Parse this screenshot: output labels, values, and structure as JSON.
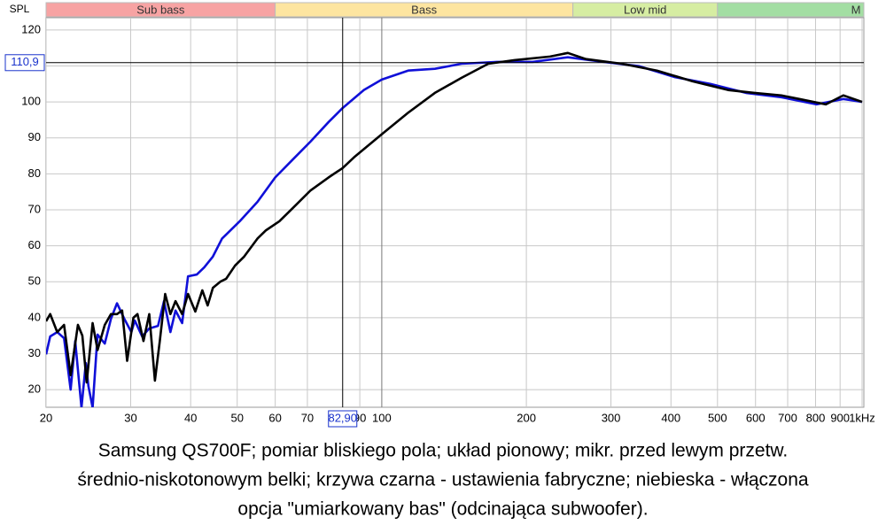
{
  "chart_data": {
    "type": "line",
    "ylabel": "SPL",
    "xscale": "log",
    "xlim": [
      20,
      1000
    ],
    "ylim": [
      15.1,
      123.4
    ],
    "xticks": [
      20,
      30,
      40,
      50,
      60,
      70,
      90,
      100,
      200,
      300,
      400,
      500,
      600,
      700,
      800,
      900,
      {
        "value": 1000,
        "label": "1kHz"
      }
    ],
    "yticks": [
      20,
      30,
      40,
      50,
      60,
      70,
      80,
      90,
      100,
      110,
      120
    ],
    "grid": true,
    "bands": [
      {
        "name": "Sub bass",
        "from": 20,
        "to": 60,
        "color": "#f7a3a3"
      },
      {
        "name": "Bass",
        "from": 60,
        "to": 250,
        "color": "#fde5a0"
      },
      {
        "name": "Low mid",
        "from": 250,
        "to": 500,
        "color": "#d6eda2"
      },
      {
        "name": "M",
        "from": 500,
        "color": "#a3dea3"
      }
    ],
    "cursor": {
      "x": {
        "value": 82.9,
        "label": "82,90"
      },
      "y": {
        "value": 110.9,
        "label": "110,9"
      },
      "color": "#1a33cc"
    },
    "series": [
      {
        "color": "#1010d8",
        "x": [
          20,
          20.4,
          21.1,
          21.8,
          22.5,
          23.0,
          23.7,
          24.2,
          24.5,
          25.0,
          25.6,
          26.5,
          27.3,
          28.1,
          29.1,
          30.1,
          30.6,
          31.7,
          32.8,
          34.2,
          35.2,
          36.3,
          37.2,
          38.4,
          39.5,
          41.2,
          42.7,
          44.5,
          46.5,
          50.6,
          55.1,
          60,
          65.3,
          71.1,
          77.5,
          82.9,
          91.8,
          100,
          113.5,
          129,
          146.6,
          173.8,
          206,
          244,
          290,
          344,
          407,
          483,
          573,
          679,
          804,
          914,
          1000
        ],
        "values": [
          29.8,
          34.8,
          36,
          34.3,
          20,
          33.5,
          15,
          27.4,
          21,
          15,
          35.3,
          32.8,
          39.7,
          44,
          39.7,
          36,
          39.2,
          34.8,
          37,
          37.7,
          44.6,
          36,
          42,
          38.5,
          51.5,
          52,
          54,
          57,
          62,
          66.8,
          72.2,
          79,
          84,
          89,
          94.4,
          98.3,
          103.3,
          106.2,
          108.7,
          109.2,
          110.6,
          111.1,
          111.1,
          112.4,
          111.1,
          109.9,
          106.9,
          105,
          102.5,
          101.3,
          99.3,
          100.8,
          100
        ]
      },
      {
        "color": "#000000",
        "x": [
          20,
          20.4,
          21.1,
          21.8,
          22.5,
          23.3,
          23.8,
          24.3,
          25.0,
          25.6,
          26.5,
          27.3,
          28.1,
          28.8,
          29.5,
          30.4,
          31.0,
          31.9,
          32.8,
          33.7,
          34.5,
          35.4,
          36.3,
          37.2,
          38.4,
          39.5,
          40.9,
          42.3,
          43.4,
          44.5,
          46.1,
          47.4,
          49.5,
          51.7,
          55.1,
          57.4,
          61.2,
          65.3,
          71.1,
          77.5,
          82.9,
          87.9,
          100,
          113.5,
          129,
          146.6,
          166.6,
          189,
          224,
          244,
          266,
          316,
          374,
          444,
          526,
          597,
          679,
          740,
          840,
          914,
          1000
        ],
        "values": [
          39,
          41,
          36,
          38,
          24,
          38,
          35,
          22,
          38.5,
          31,
          38,
          41,
          41,
          42,
          28,
          40,
          41,
          33.5,
          41,
          22.5,
          33.5,
          46.6,
          41,
          44.6,
          41,
          46.6,
          41.7,
          47.6,
          43.4,
          48.3,
          50,
          50.8,
          54.5,
          57,
          62,
          64.3,
          66.8,
          70.5,
          75.4,
          79,
          81.6,
          84.8,
          91,
          97,
          102.5,
          106.7,
          110.6,
          111.6,
          112.6,
          113.6,
          111.9,
          110.6,
          108.7,
          105.7,
          103.3,
          102.5,
          101.8,
          100.8,
          99.3,
          101.8,
          100
        ]
      }
    ]
  },
  "caption": [
    "Samsung QS700F; pomiar bliskiego pola; układ pionowy; mikr. przed lewym przetw.",
    "średnio-niskotonowym belki; krzywa czarna - ustawienia fabryczne; niebieska - włączona",
    "opcja \"umiarkowany bas\" (odcinająca subwoofer)."
  ]
}
